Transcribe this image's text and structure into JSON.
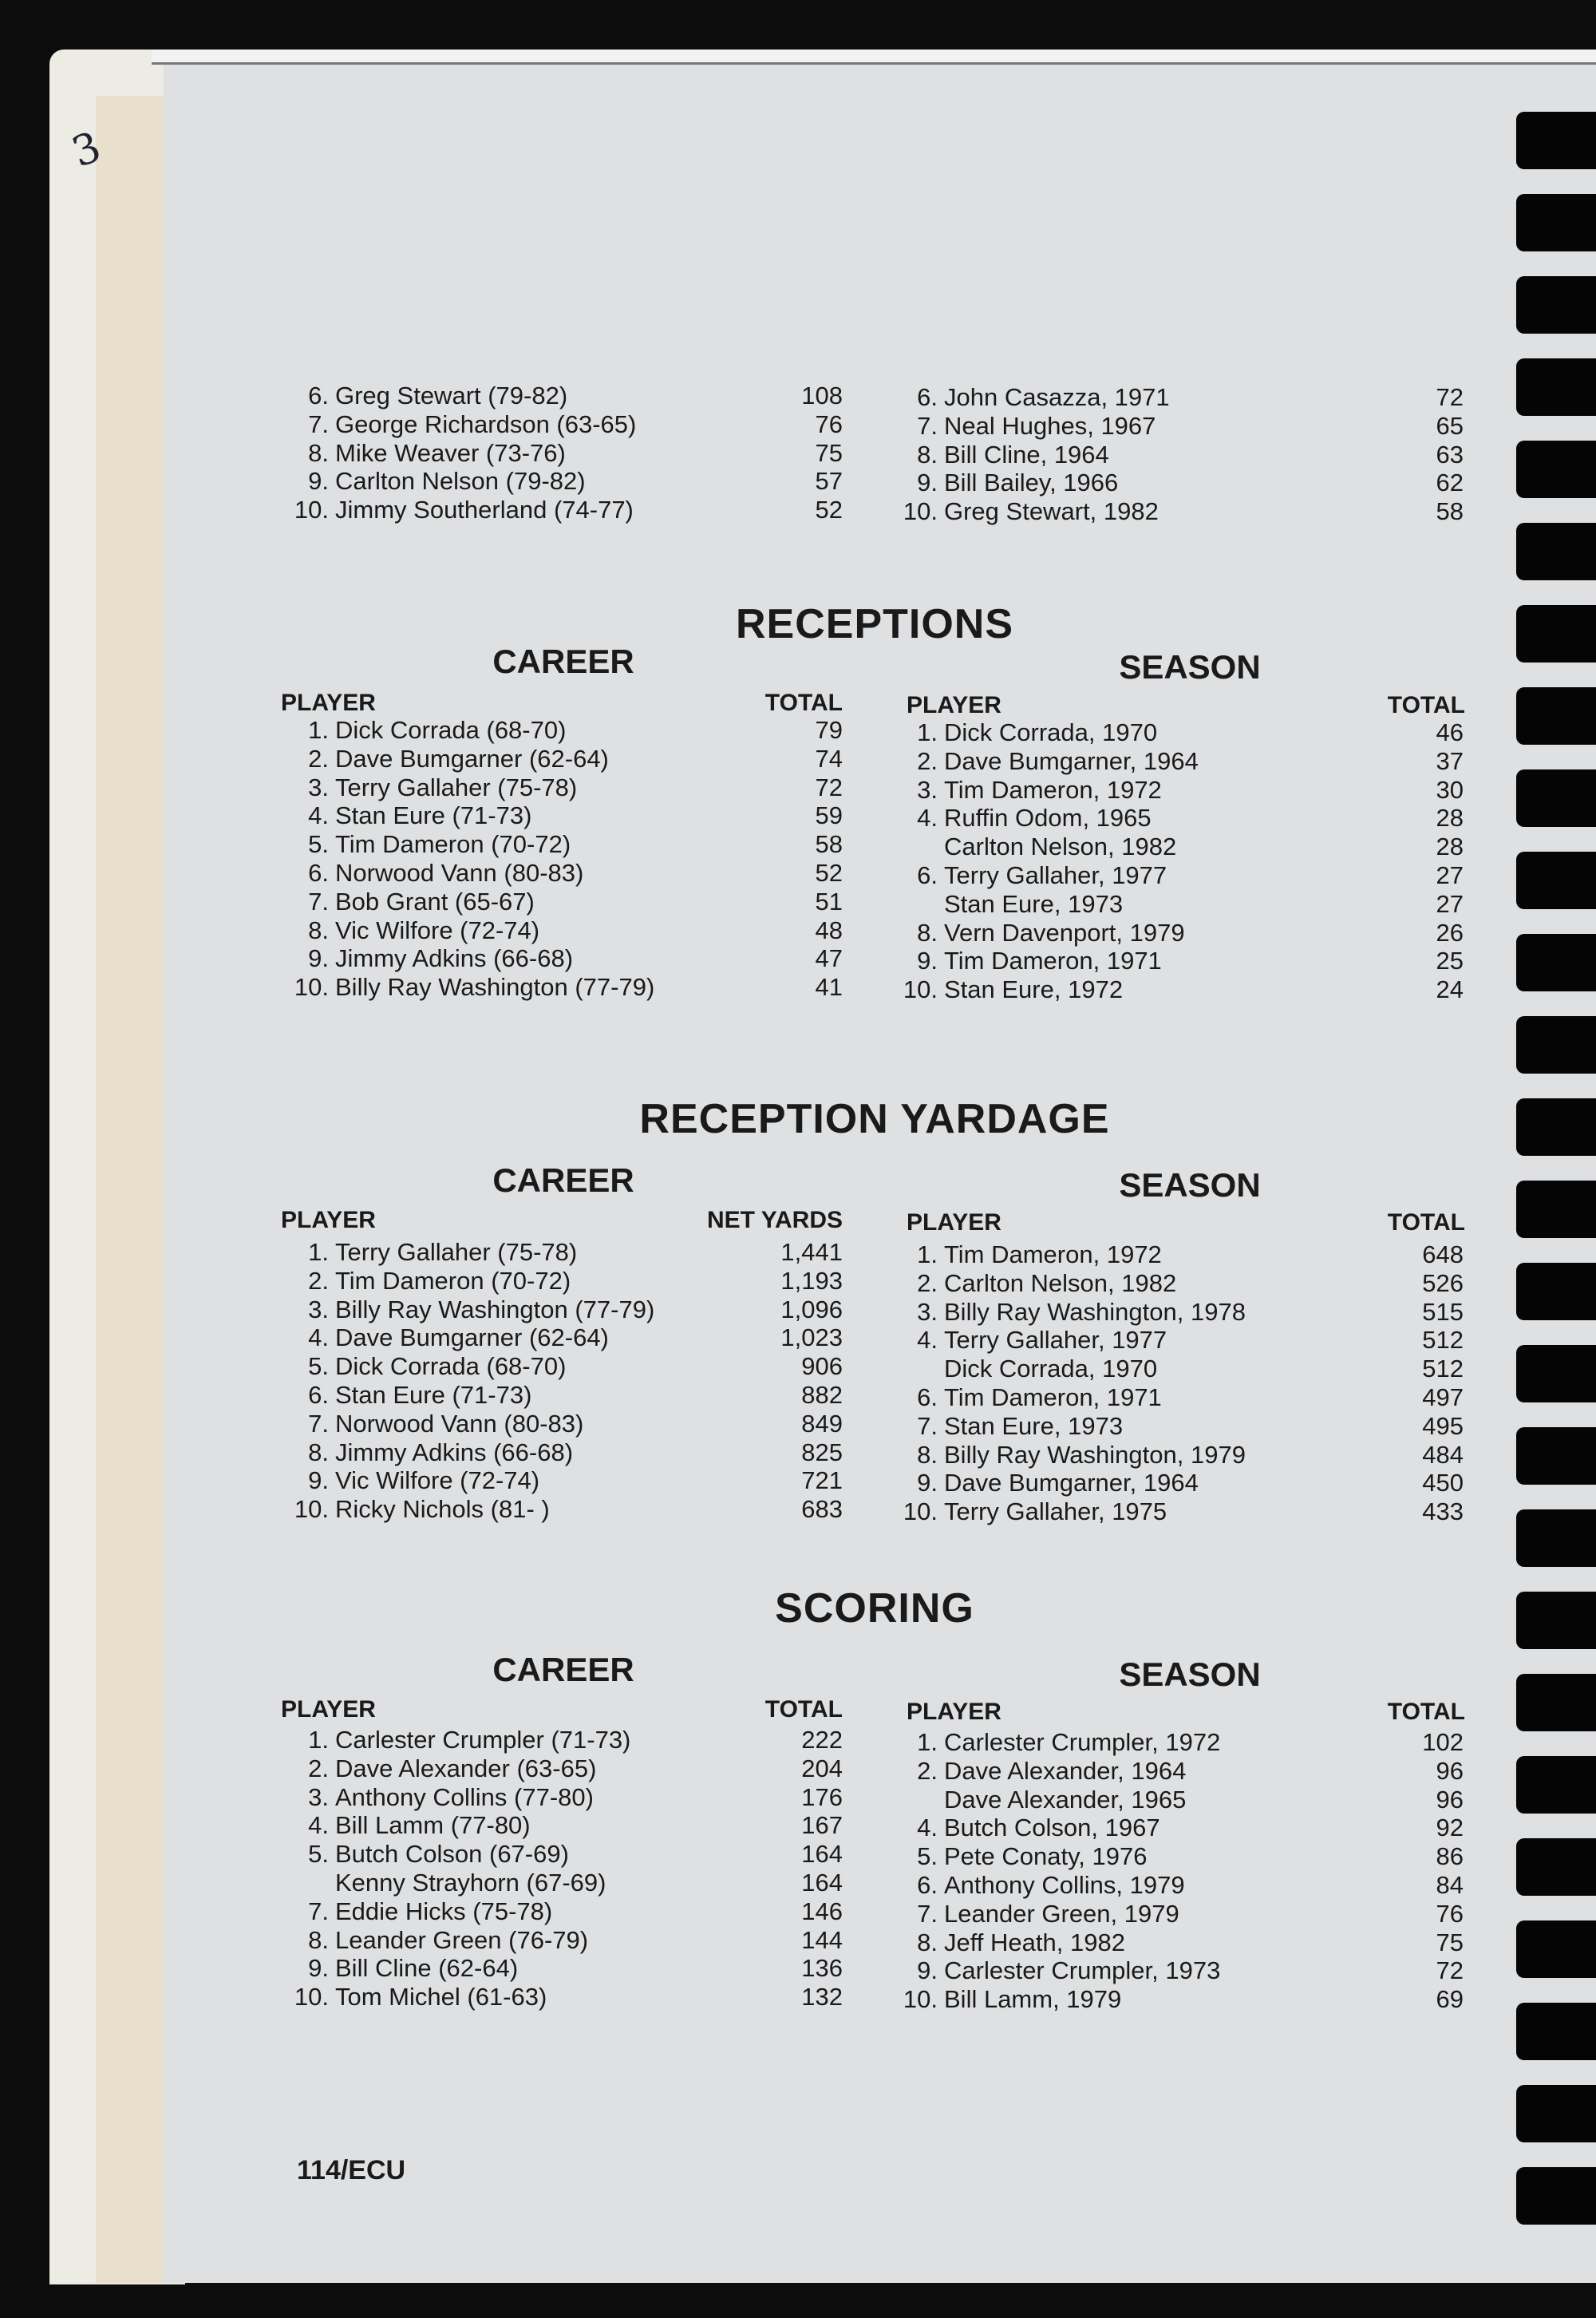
{
  "handwritten_mark": "3",
  "top": {
    "left": [
      {
        "rank": "6.",
        "name": "Greg Stewart (79-82)",
        "value": "108"
      },
      {
        "rank": "7.",
        "name": "George Richardson (63-65)",
        "value": "76"
      },
      {
        "rank": "8.",
        "name": "Mike Weaver (73-76)",
        "value": "75"
      },
      {
        "rank": "9.",
        "name": "Carlton Nelson (79-82)",
        "value": "57"
      },
      {
        "rank": "10.",
        "name": "Jimmy Southerland (74-77)",
        "value": "52"
      }
    ],
    "right": [
      {
        "rank": "6.",
        "name": "John Casazza, 1971",
        "value": "72"
      },
      {
        "rank": "7.",
        "name": "Neal Hughes, 1967",
        "value": "65"
      },
      {
        "rank": "8.",
        "name": "Bill Cline, 1964",
        "value": "63"
      },
      {
        "rank": "9.",
        "name": "Bill Bailey, 1966",
        "value": "62"
      },
      {
        "rank": "10.",
        "name": "Greg Stewart, 1982",
        "value": "58"
      }
    ]
  },
  "sections": [
    {
      "title": "RECEPTIONS",
      "career": {
        "heading": "CAREER",
        "player_label": "PLAYER",
        "value_label": "TOTAL",
        "rows": [
          {
            "rank": "1.",
            "name": "Dick Corrada (68-70)",
            "value": "79"
          },
          {
            "rank": "2.",
            "name": "Dave Bumgarner (62-64)",
            "value": "74"
          },
          {
            "rank": "3.",
            "name": "Terry Gallaher (75-78)",
            "value": "72"
          },
          {
            "rank": "4.",
            "name": "Stan Eure (71-73)",
            "value": "59"
          },
          {
            "rank": "5.",
            "name": "Tim Dameron (70-72)",
            "value": "58"
          },
          {
            "rank": "6.",
            "name": "Norwood Vann (80-83)",
            "value": "52"
          },
          {
            "rank": "7.",
            "name": "Bob Grant (65-67)",
            "value": "51"
          },
          {
            "rank": "8.",
            "name": "Vic Wilfore (72-74)",
            "value": "48"
          },
          {
            "rank": "9.",
            "name": "Jimmy Adkins (66-68)",
            "value": "47"
          },
          {
            "rank": "10.",
            "name": "Billy Ray Washington (77-79)",
            "value": "41"
          }
        ]
      },
      "season": {
        "heading": "SEASON",
        "player_label": "PLAYER",
        "value_label": "TOTAL",
        "rows": [
          {
            "rank": "1.",
            "name": "Dick Corrada, 1970",
            "value": "46"
          },
          {
            "rank": "2.",
            "name": "Dave Bumgarner, 1964",
            "value": "37"
          },
          {
            "rank": "3.",
            "name": "Tim Dameron, 1972",
            "value": "30"
          },
          {
            "rank": "4.",
            "name": "Ruffin Odom, 1965",
            "value": "28"
          },
          {
            "rank": "",
            "name": "Carlton Nelson, 1982",
            "value": "28"
          },
          {
            "rank": "6.",
            "name": "Terry Gallaher, 1977",
            "value": "27"
          },
          {
            "rank": "",
            "name": "Stan Eure, 1973",
            "value": "27"
          },
          {
            "rank": "8.",
            "name": "Vern Davenport, 1979",
            "value": "26"
          },
          {
            "rank": "9.",
            "name": "Tim Dameron, 1971",
            "value": "25"
          },
          {
            "rank": "10.",
            "name": "Stan Eure, 1972",
            "value": "24"
          }
        ]
      }
    },
    {
      "title": "RECEPTION YARDAGE",
      "career": {
        "heading": "CAREER",
        "player_label": "PLAYER",
        "value_label": "NET YARDS",
        "rows": [
          {
            "rank": "1.",
            "name": "Terry Gallaher (75-78)",
            "value": "1,441"
          },
          {
            "rank": "2.",
            "name": "Tim Dameron (70-72)",
            "value": "1,193"
          },
          {
            "rank": "3.",
            "name": "Billy Ray Washington (77-79)",
            "value": "1,096"
          },
          {
            "rank": "4.",
            "name": "Dave Bumgarner (62-64)",
            "value": "1,023"
          },
          {
            "rank": "5.",
            "name": "Dick Corrada (68-70)",
            "value": "906"
          },
          {
            "rank": "6.",
            "name": "Stan Eure (71-73)",
            "value": "882"
          },
          {
            "rank": "7.",
            "name": "Norwood Vann (80-83)",
            "value": "849"
          },
          {
            "rank": "8.",
            "name": "Jimmy Adkins (66-68)",
            "value": "825"
          },
          {
            "rank": "9.",
            "name": "Vic Wilfore (72-74)",
            "value": "721"
          },
          {
            "rank": "10.",
            "name": "Ricky Nichols (81-   )",
            "value": "683"
          }
        ]
      },
      "season": {
        "heading": "SEASON",
        "player_label": "PLAYER",
        "value_label": "TOTAL",
        "rows": [
          {
            "rank": "1.",
            "name": "Tim Dameron, 1972",
            "value": "648"
          },
          {
            "rank": "2.",
            "name": "Carlton Nelson, 1982",
            "value": "526"
          },
          {
            "rank": "3.",
            "name": "Billy Ray Washington, 1978",
            "value": "515"
          },
          {
            "rank": "4.",
            "name": "Terry Gallaher, 1977",
            "value": "512"
          },
          {
            "rank": "",
            "name": "Dick Corrada, 1970",
            "value": "512"
          },
          {
            "rank": "6.",
            "name": "Tim Dameron, 1971",
            "value": "497"
          },
          {
            "rank": "7.",
            "name": "Stan Eure, 1973",
            "value": "495"
          },
          {
            "rank": "8.",
            "name": "Billy Ray Washington, 1979",
            "value": "484"
          },
          {
            "rank": "9.",
            "name": "Dave Bumgarner, 1964",
            "value": "450"
          },
          {
            "rank": "10.",
            "name": "Terry Gallaher, 1975",
            "value": "433"
          }
        ]
      }
    },
    {
      "title": "SCORING",
      "career": {
        "heading": "CAREER",
        "player_label": "PLAYER",
        "value_label": "TOTAL",
        "rows": [
          {
            "rank": "1.",
            "name": "Carlester Crumpler (71-73)",
            "value": "222"
          },
          {
            "rank": "2.",
            "name": "Dave Alexander (63-65)",
            "value": "204"
          },
          {
            "rank": "3.",
            "name": "Anthony Collins (77-80)",
            "value": "176"
          },
          {
            "rank": "4.",
            "name": "Bill Lamm (77-80)",
            "value": "167"
          },
          {
            "rank": "5.",
            "name": "Butch Colson (67-69)",
            "value": "164"
          },
          {
            "rank": "",
            "name": "Kenny Strayhorn (67-69)",
            "value": "164"
          },
          {
            "rank": "7.",
            "name": "Eddie Hicks (75-78)",
            "value": "146"
          },
          {
            "rank": "8.",
            "name": "Leander Green (76-79)",
            "value": "144"
          },
          {
            "rank": "9.",
            "name": "Bill Cline (62-64)",
            "value": "136"
          },
          {
            "rank": "10.",
            "name": "Tom Michel (61-63)",
            "value": "132"
          }
        ]
      },
      "season": {
        "heading": "SEASON",
        "player_label": "PLAYER",
        "value_label": "TOTAL",
        "rows": [
          {
            "rank": "1.",
            "name": "Carlester Crumpler, 1972",
            "value": "102"
          },
          {
            "rank": "2.",
            "name": "Dave Alexander, 1964",
            "value": "96"
          },
          {
            "rank": "",
            "name": "Dave Alexander, 1965",
            "value": "96"
          },
          {
            "rank": "4.",
            "name": "Butch Colson, 1967",
            "value": "92"
          },
          {
            "rank": "5.",
            "name": "Pete Conaty, 1976",
            "value": "86"
          },
          {
            "rank": "6.",
            "name": "Anthony Collins, 1979",
            "value": "84"
          },
          {
            "rank": "7.",
            "name": "Leander Green, 1979",
            "value": "76"
          },
          {
            "rank": "8.",
            "name": "Jeff Heath, 1982",
            "value": "75"
          },
          {
            "rank": "9.",
            "name": "Carlester Crumpler, 1973",
            "value": "72"
          },
          {
            "rank": "10.",
            "name": "Bill Lamm, 1979",
            "value": "69"
          }
        ]
      }
    }
  ],
  "footer": {
    "page_label": "114/ECU"
  }
}
